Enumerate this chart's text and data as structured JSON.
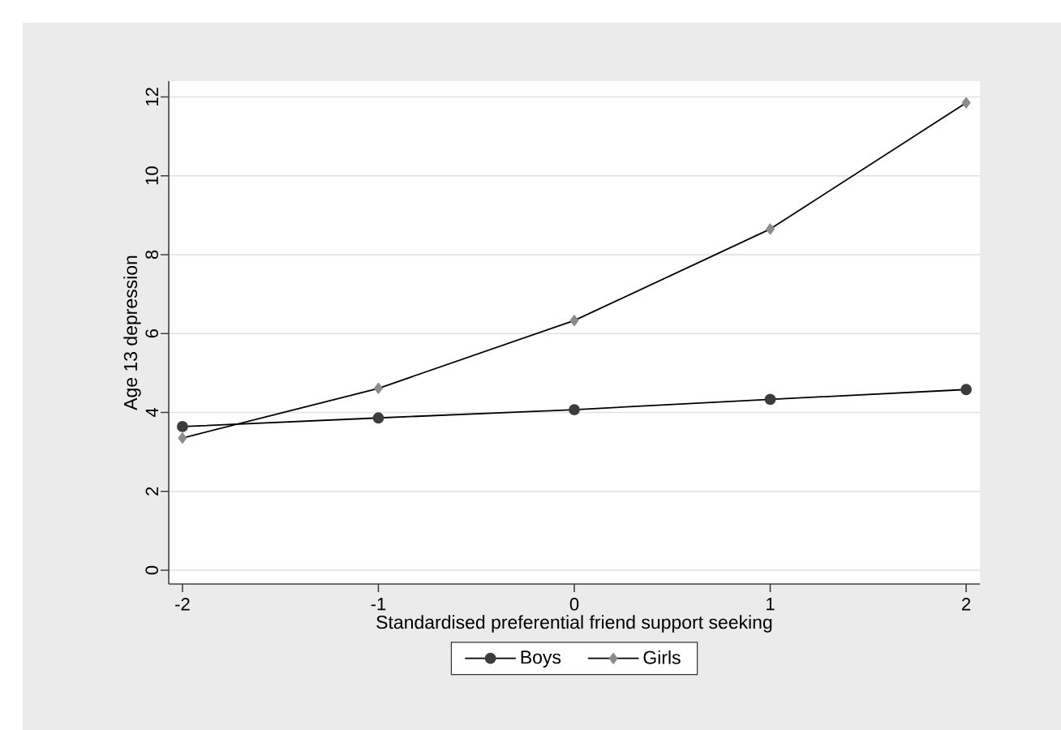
{
  "chart_data": {
    "type": "line",
    "xlabel": "Standardised preferential friend support seeking",
    "ylabel": "Age 13 depression",
    "x": [
      -2,
      -1,
      0,
      1,
      2
    ],
    "series": [
      {
        "name": "Boys",
        "color": "#3c3c3c",
        "marker": "circle",
        "values": [
          3.64,
          3.86,
          4.07,
          4.33,
          4.58
        ]
      },
      {
        "name": "Girls",
        "color": "#8c8c8c",
        "marker": "diamond",
        "values": [
          3.35,
          4.61,
          6.33,
          8.65,
          11.85
        ]
      }
    ],
    "xlim": [
      -2.07,
      2.07
    ],
    "ylim": [
      -0.35,
      12.4
    ],
    "xticks": [
      -2,
      -1,
      0,
      1,
      2
    ],
    "yticks": [
      0,
      2,
      4,
      6,
      8,
      10,
      12
    ],
    "grid": "y",
    "legend": "bottom",
    "line_style": "solid"
  }
}
